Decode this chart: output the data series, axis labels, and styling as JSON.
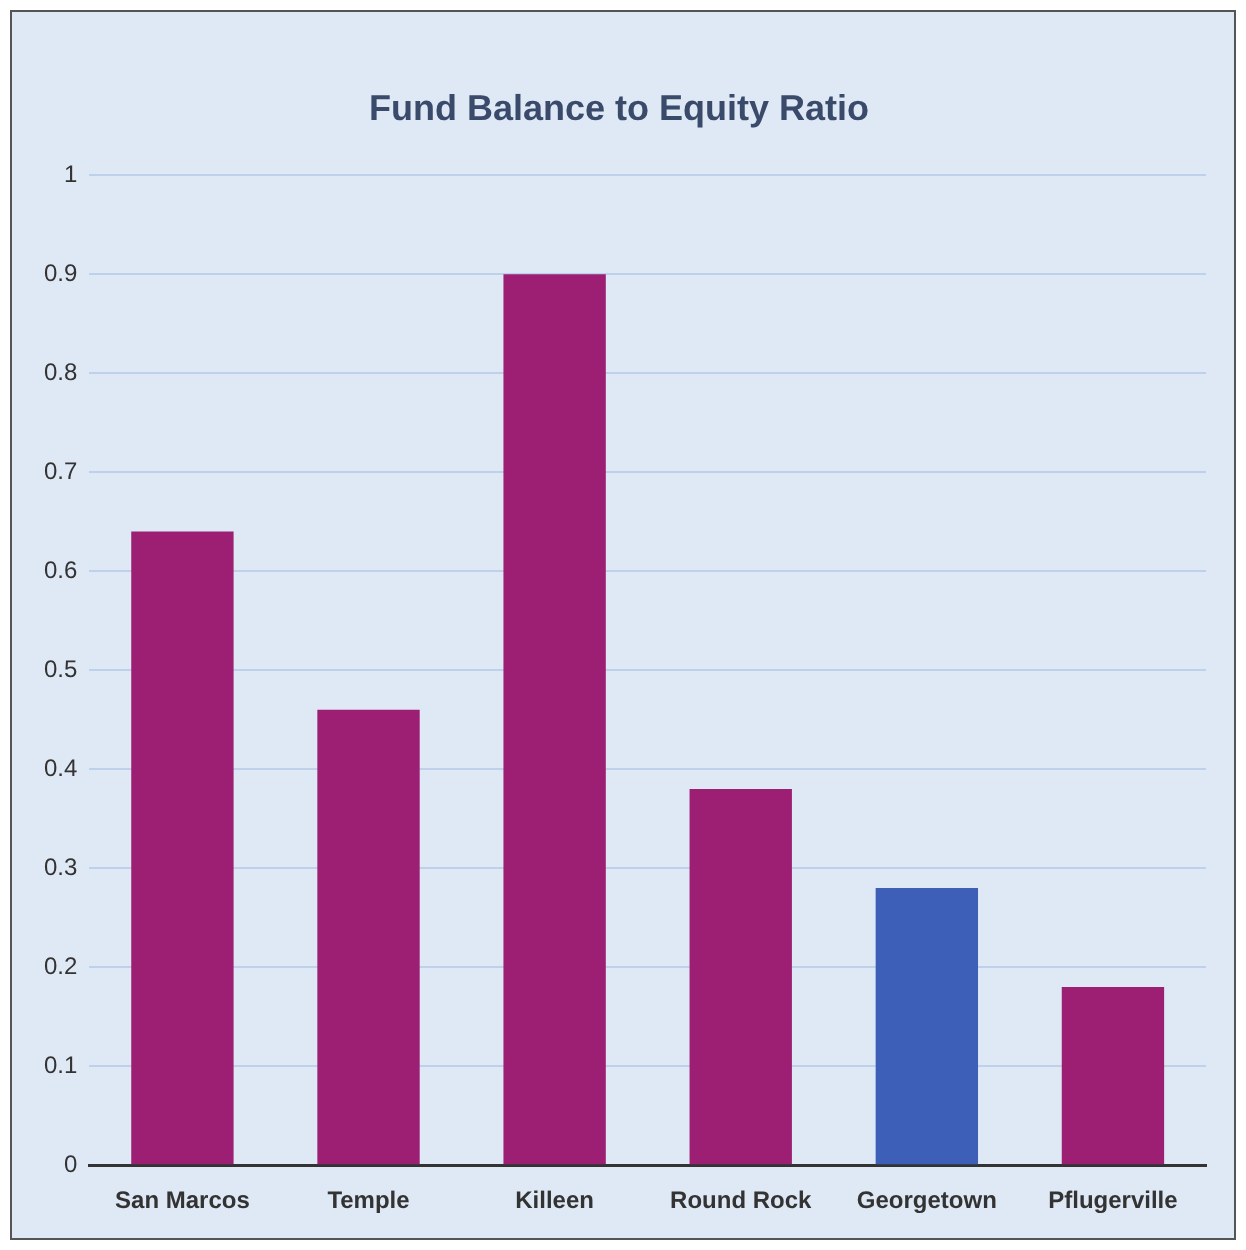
{
  "chart_data": {
    "type": "bar",
    "title": "Fund Balance to Equity Ratio",
    "categories": [
      "San Marcos",
      "Temple",
      "Killeen",
      "Round Rock",
      "Georgetown",
      "Pflugerville"
    ],
    "values": [
      0.64,
      0.46,
      0.9,
      0.38,
      0.28,
      0.18
    ],
    "colors": [
      "#9c1f74",
      "#9c1f74",
      "#9c1f74",
      "#9c1f74",
      "#3d5fb8",
      "#9c1f74"
    ],
    "ylim": [
      0,
      1
    ],
    "yticks": [
      0,
      0.1,
      0.2,
      0.3,
      0.4,
      0.5,
      0.6,
      0.7,
      0.8,
      0.9,
      1
    ],
    "grid": "y",
    "legend": false
  }
}
